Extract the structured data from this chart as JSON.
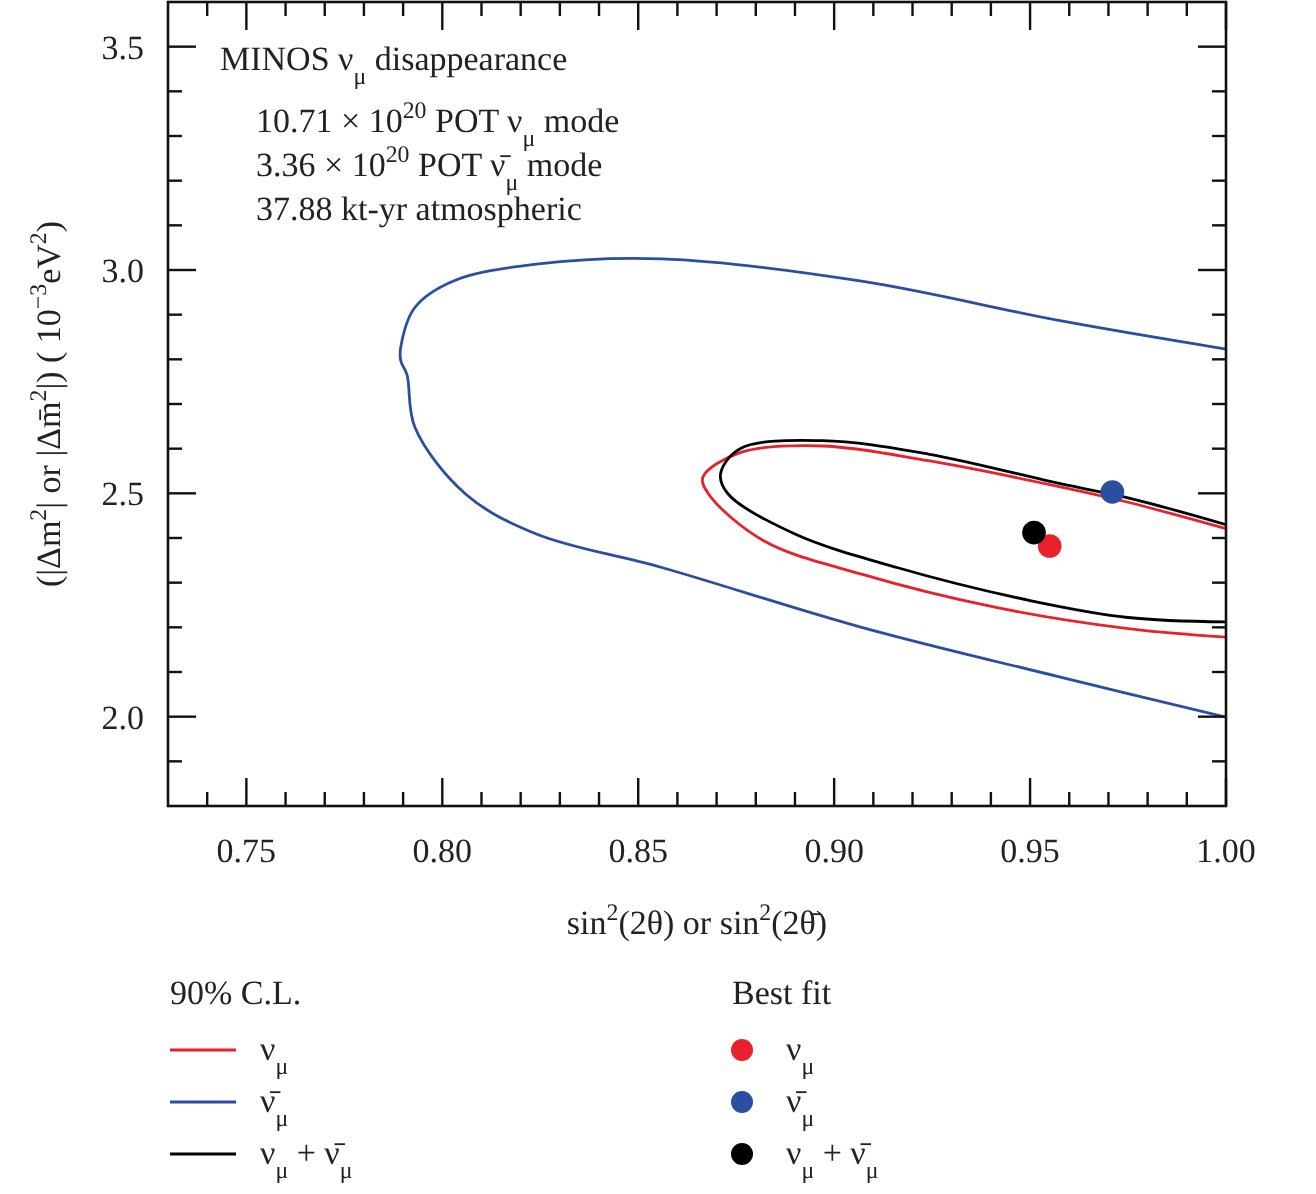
{
  "chart_data": {
    "type": "line",
    "title": "MINOS ν$_{μ}$ disappearance",
    "annotations": [
      "10.71 × 10$^{20}$ POT ν$_{μ}$ mode",
      "3.36 × 10$^{20}$ POT ν̄$_{μ}$ mode",
      "37.88 kt-yr atmospheric",
      "90% C.L.",
      "Best fit"
    ],
    "xlabel": "sin$^{2}$(2θ) or sin$^{2}$(2θ̄)",
    "ylabel": "(|Δm$^{2}$| or |Δm̄$^{2}$|) ( 10$^{−3}$eV$^{2}$)",
    "xlim": [
      0.73,
      1.0
    ],
    "ylim": [
      1.8,
      3.6
    ],
    "xticks": [
      {
        "value": 0.74,
        "label": null
      },
      {
        "value": 0.75,
        "label": "0.75"
      },
      {
        "value": 0.76,
        "label": null
      },
      {
        "value": 0.77,
        "label": null
      },
      {
        "value": 0.78,
        "label": null
      },
      {
        "value": 0.79,
        "label": null
      },
      {
        "value": 0.8,
        "label": "0.80"
      },
      {
        "value": 0.81,
        "label": null
      },
      {
        "value": 0.82,
        "label": null
      },
      {
        "value": 0.83,
        "label": null
      },
      {
        "value": 0.84,
        "label": null
      },
      {
        "value": 0.85,
        "label": "0.85"
      },
      {
        "value": 0.86,
        "label": null
      },
      {
        "value": 0.87,
        "label": null
      },
      {
        "value": 0.88,
        "label": null
      },
      {
        "value": 0.89,
        "label": null
      },
      {
        "value": 0.9,
        "label": "0.90"
      },
      {
        "value": 0.91,
        "label": null
      },
      {
        "value": 0.92,
        "label": null
      },
      {
        "value": 0.93,
        "label": null
      },
      {
        "value": 0.94,
        "label": null
      },
      {
        "value": 0.95,
        "label": "0.95"
      },
      {
        "value": 0.96,
        "label": null
      },
      {
        "value": 0.97,
        "label": null
      },
      {
        "value": 0.98,
        "label": null
      },
      {
        "value": 0.99,
        "label": null
      },
      {
        "value": 1.0,
        "label": "1.00"
      }
    ],
    "yticks": [
      {
        "value": 1.9,
        "label": null
      },
      {
        "value": 2.0,
        "label": "2.0"
      },
      {
        "value": 2.1,
        "label": null
      },
      {
        "value": 2.2,
        "label": null
      },
      {
        "value": 2.3,
        "label": null
      },
      {
        "value": 2.4,
        "label": null
      },
      {
        "value": 2.5,
        "label": "2.5"
      },
      {
        "value": 2.6,
        "label": null
      },
      {
        "value": 2.7,
        "label": null
      },
      {
        "value": 2.8,
        "label": null
      },
      {
        "value": 2.9,
        "label": null
      },
      {
        "value": 3.0,
        "label": "3.0"
      },
      {
        "value": 3.1,
        "label": null
      },
      {
        "value": 3.2,
        "label": null
      },
      {
        "value": 3.3,
        "label": null
      },
      {
        "value": 3.4,
        "label": null
      },
      {
        "value": 3.5,
        "label": "3.5"
      }
    ],
    "grid": false,
    "legend": "bottom",
    "marker": "none",
    "series": [
      {
        "name": "ν$_{μ}$",
        "color": "#e8212b",
        "x": [
          1.0,
          0.975,
          0.958,
          0.924,
          0.897,
          0.876,
          0.8665,
          0.868,
          0.882,
          0.907,
          0.941,
          0.975,
          1.0
        ],
        "values": [
          2.421,
          2.48,
          2.514,
          2.573,
          2.606,
          2.591,
          2.536,
          2.498,
          2.394,
          2.319,
          2.245,
          2.197,
          2.178
        ]
      },
      {
        "name": "ν̄$_{μ}$",
        "color": "#2a4ea0",
        "x": [
          1.0,
          0.958,
          0.907,
          0.856,
          0.824,
          0.803,
          0.793,
          0.7894,
          0.7894,
          0.791,
          0.793,
          0.806,
          0.824,
          0.856,
          0.907,
          0.958,
          1.0
        ],
        "values": [
          2.823,
          2.886,
          2.975,
          3.025,
          3.013,
          2.976,
          2.916,
          2.827,
          2.797,
          2.765,
          2.648,
          2.498,
          2.409,
          2.334,
          2.2,
          2.088,
          1.999
        ]
      },
      {
        "name": "ν$_{μ}$ + ν̄$_{μ}$",
        "color": "#000000",
        "x": [
          1.0,
          0.975,
          0.958,
          0.924,
          0.897,
          0.876,
          0.871,
          0.873,
          0.89,
          0.916,
          0.95,
          0.975,
          1.0
        ],
        "values": [
          2.43,
          2.49,
          2.521,
          2.588,
          2.618,
          2.6,
          2.543,
          2.498,
          2.409,
          2.334,
          2.26,
          2.222,
          2.212
        ]
      },
      {
        "name": "ν$_{μ}$",
        "type": "scatter",
        "marker": "circle",
        "color": "#e8212b",
        "x": [
          0.955
        ],
        "values": [
          2.382
        ]
      },
      {
        "name": "ν̄$_{μ}$",
        "type": "scatter",
        "marker": "circle",
        "color": "#2a4ea0",
        "x": [
          0.971
        ],
        "values": [
          2.503
        ]
      },
      {
        "name": "ν$_{μ}$ + ν̄$_{μ}$",
        "type": "scatter",
        "marker": "circle",
        "color": "#000000",
        "x": [
          0.951
        ],
        "values": [
          2.412
        ]
      }
    ]
  }
}
